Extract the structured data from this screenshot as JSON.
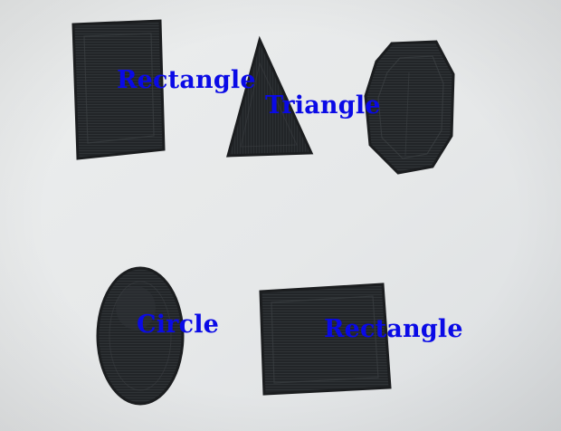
{
  "photo": {
    "paper_color": "#e7e9ea",
    "ink_color": "#202325",
    "label_color": "#0a0ae6"
  },
  "labels": {
    "rectangle_top": "Rectangle",
    "triangle": "Triangle",
    "circle": "Circle",
    "rectangle_bottom": "Rectangle"
  }
}
